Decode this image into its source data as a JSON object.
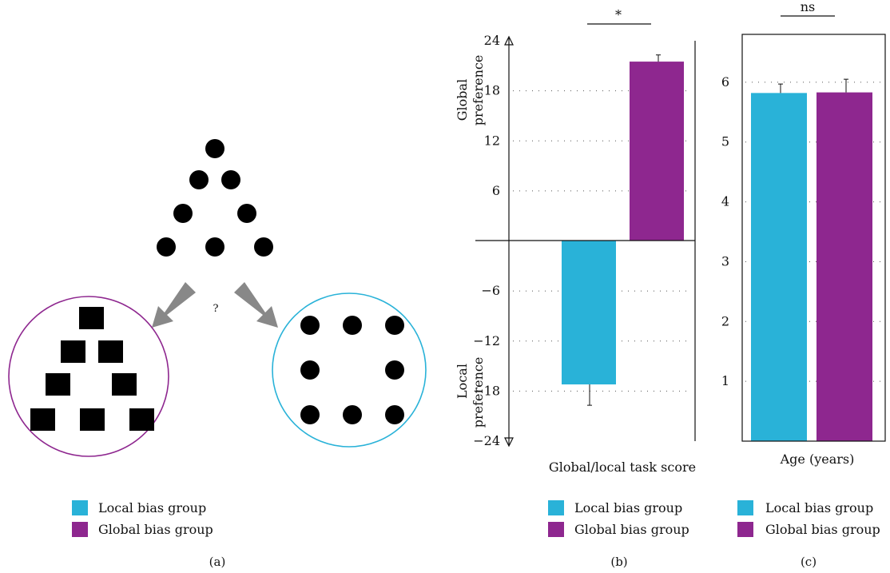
{
  "colors": {
    "local": "#29b2d8",
    "global": "#8e278f",
    "arrow": "#888888",
    "black": "#000000"
  },
  "panel_a": {
    "question_mark": "?",
    "legend": [
      "Local bias group",
      "Global bias group"
    ],
    "caption": "(a)"
  },
  "chart_data": [
    {
      "type": "bar",
      "panel": "b",
      "categories": [
        "Local bias group",
        "Global bias group"
      ],
      "values": [
        -17.2,
        21.5
      ],
      "error": [
        2.5,
        0.8
      ],
      "xlabel": "Global/local task score",
      "ylabel_top": [
        "Global",
        "preference"
      ],
      "ylabel_bottom": [
        "Local",
        "preference"
      ],
      "ylim": [
        -24,
        24
      ],
      "yticks": [
        24,
        18,
        12,
        6,
        -6,
        -12,
        -18,
        -24
      ],
      "ytick_labels": [
        "24",
        "18",
        "12",
        "6",
        "−6",
        "−12",
        "−18",
        "−24"
      ],
      "grid": true,
      "significance": "*",
      "legend": [
        "Local bias group",
        "Global bias group"
      ],
      "caption": "(b)"
    },
    {
      "type": "bar",
      "panel": "c",
      "categories": [
        "Local bias group",
        "Global bias group"
      ],
      "values": [
        5.82,
        5.83
      ],
      "error": [
        0.15,
        0.22
      ],
      "xlabel": "Age (years)",
      "ylim": [
        0,
        6.8
      ],
      "yticks": [
        6,
        5,
        4,
        3,
        2,
        1
      ],
      "ytick_labels": [
        "6",
        "5",
        "4",
        "3",
        "2",
        "1"
      ],
      "grid": true,
      "significance": "ns",
      "legend": [
        "Local bias group",
        "Global bias group"
      ],
      "caption": "(c)"
    }
  ]
}
